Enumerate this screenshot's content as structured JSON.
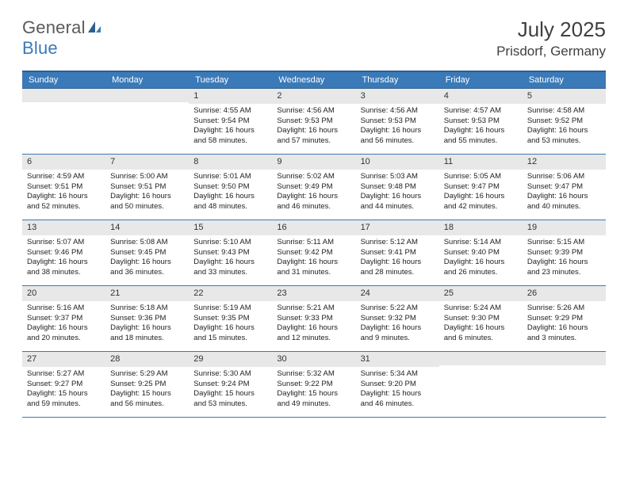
{
  "logo": {
    "text1": "General",
    "text2": "Blue"
  },
  "title": "July 2025",
  "location": "Prisdorf, Germany",
  "colors": {
    "header_bg": "#3a7ab8",
    "header_border": "#2e5f8f",
    "daynum_bg": "#e8e8e8",
    "logo_gray": "#5a5a5a",
    "logo_blue": "#3a7ab8"
  },
  "weekdays": [
    "Sunday",
    "Monday",
    "Tuesday",
    "Wednesday",
    "Thursday",
    "Friday",
    "Saturday"
  ],
  "weeks": [
    [
      null,
      null,
      {
        "n": "1",
        "sr": "4:55 AM",
        "ss": "9:54 PM",
        "dl": "16 hours and 58 minutes."
      },
      {
        "n": "2",
        "sr": "4:56 AM",
        "ss": "9:53 PM",
        "dl": "16 hours and 57 minutes."
      },
      {
        "n": "3",
        "sr": "4:56 AM",
        "ss": "9:53 PM",
        "dl": "16 hours and 56 minutes."
      },
      {
        "n": "4",
        "sr": "4:57 AM",
        "ss": "9:53 PM",
        "dl": "16 hours and 55 minutes."
      },
      {
        "n": "5",
        "sr": "4:58 AM",
        "ss": "9:52 PM",
        "dl": "16 hours and 53 minutes."
      }
    ],
    [
      {
        "n": "6",
        "sr": "4:59 AM",
        "ss": "9:51 PM",
        "dl": "16 hours and 52 minutes."
      },
      {
        "n": "7",
        "sr": "5:00 AM",
        "ss": "9:51 PM",
        "dl": "16 hours and 50 minutes."
      },
      {
        "n": "8",
        "sr": "5:01 AM",
        "ss": "9:50 PM",
        "dl": "16 hours and 48 minutes."
      },
      {
        "n": "9",
        "sr": "5:02 AM",
        "ss": "9:49 PM",
        "dl": "16 hours and 46 minutes."
      },
      {
        "n": "10",
        "sr": "5:03 AM",
        "ss": "9:48 PM",
        "dl": "16 hours and 44 minutes."
      },
      {
        "n": "11",
        "sr": "5:05 AM",
        "ss": "9:47 PM",
        "dl": "16 hours and 42 minutes."
      },
      {
        "n": "12",
        "sr": "5:06 AM",
        "ss": "9:47 PM",
        "dl": "16 hours and 40 minutes."
      }
    ],
    [
      {
        "n": "13",
        "sr": "5:07 AM",
        "ss": "9:46 PM",
        "dl": "16 hours and 38 minutes."
      },
      {
        "n": "14",
        "sr": "5:08 AM",
        "ss": "9:45 PM",
        "dl": "16 hours and 36 minutes."
      },
      {
        "n": "15",
        "sr": "5:10 AM",
        "ss": "9:43 PM",
        "dl": "16 hours and 33 minutes."
      },
      {
        "n": "16",
        "sr": "5:11 AM",
        "ss": "9:42 PM",
        "dl": "16 hours and 31 minutes."
      },
      {
        "n": "17",
        "sr": "5:12 AM",
        "ss": "9:41 PM",
        "dl": "16 hours and 28 minutes."
      },
      {
        "n": "18",
        "sr": "5:14 AM",
        "ss": "9:40 PM",
        "dl": "16 hours and 26 minutes."
      },
      {
        "n": "19",
        "sr": "5:15 AM",
        "ss": "9:39 PM",
        "dl": "16 hours and 23 minutes."
      }
    ],
    [
      {
        "n": "20",
        "sr": "5:16 AM",
        "ss": "9:37 PM",
        "dl": "16 hours and 20 minutes."
      },
      {
        "n": "21",
        "sr": "5:18 AM",
        "ss": "9:36 PM",
        "dl": "16 hours and 18 minutes."
      },
      {
        "n": "22",
        "sr": "5:19 AM",
        "ss": "9:35 PM",
        "dl": "16 hours and 15 minutes."
      },
      {
        "n": "23",
        "sr": "5:21 AM",
        "ss": "9:33 PM",
        "dl": "16 hours and 12 minutes."
      },
      {
        "n": "24",
        "sr": "5:22 AM",
        "ss": "9:32 PM",
        "dl": "16 hours and 9 minutes."
      },
      {
        "n": "25",
        "sr": "5:24 AM",
        "ss": "9:30 PM",
        "dl": "16 hours and 6 minutes."
      },
      {
        "n": "26",
        "sr": "5:26 AM",
        "ss": "9:29 PM",
        "dl": "16 hours and 3 minutes."
      }
    ],
    [
      {
        "n": "27",
        "sr": "5:27 AM",
        "ss": "9:27 PM",
        "dl": "15 hours and 59 minutes."
      },
      {
        "n": "28",
        "sr": "5:29 AM",
        "ss": "9:25 PM",
        "dl": "15 hours and 56 minutes."
      },
      {
        "n": "29",
        "sr": "5:30 AM",
        "ss": "9:24 PM",
        "dl": "15 hours and 53 minutes."
      },
      {
        "n": "30",
        "sr": "5:32 AM",
        "ss": "9:22 PM",
        "dl": "15 hours and 49 minutes."
      },
      {
        "n": "31",
        "sr": "5:34 AM",
        "ss": "9:20 PM",
        "dl": "15 hours and 46 minutes."
      },
      null,
      null
    ]
  ],
  "labels": {
    "sunrise": "Sunrise:",
    "sunset": "Sunset:",
    "daylight": "Daylight:"
  }
}
